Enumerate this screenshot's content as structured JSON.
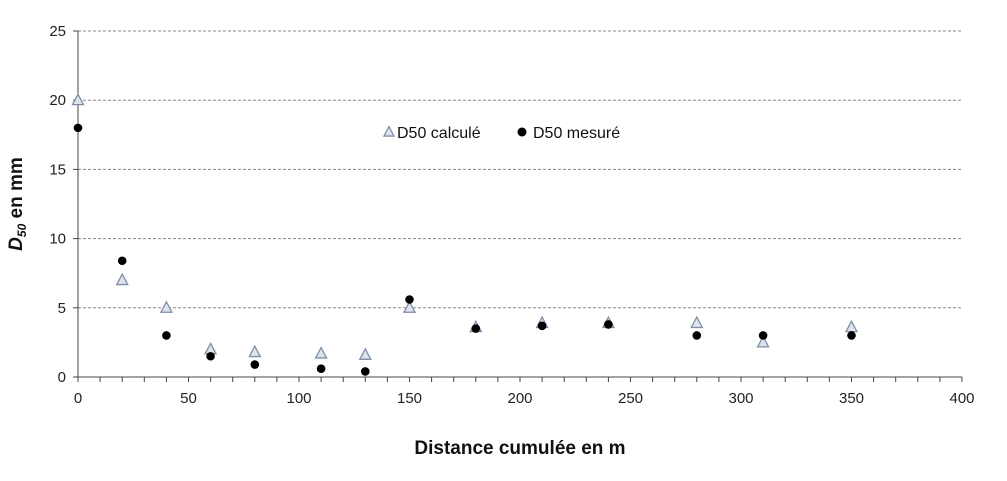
{
  "chart_data": {
    "type": "scatter",
    "xlabel": "Distance cumulée en m",
    "ylabel_main": "D",
    "ylabel_sub": "50",
    "ylabel_rest": " en mm",
    "xlim": [
      0,
      400
    ],
    "ylim": [
      0,
      25
    ],
    "xticks": [
      0,
      50,
      100,
      150,
      200,
      250,
      300,
      350,
      400
    ],
    "yticks": [
      0,
      5,
      10,
      15,
      20,
      25
    ],
    "grid": "horizontal-dashed",
    "legend_position": "upper-center",
    "series": [
      {
        "name": "D50 calculé",
        "marker": "triangle-open",
        "color": "#7f8fa8",
        "fill": "#dfe3ec",
        "points": [
          [
            0,
            20.0
          ],
          [
            20,
            7.0
          ],
          [
            40,
            5.0
          ],
          [
            60,
            2.0
          ],
          [
            80,
            1.8
          ],
          [
            110,
            1.7
          ],
          [
            130,
            1.6
          ],
          [
            150,
            5.0
          ],
          [
            180,
            3.6
          ],
          [
            210,
            3.9
          ],
          [
            240,
            3.9
          ],
          [
            280,
            3.9
          ],
          [
            310,
            2.5
          ],
          [
            350,
            3.6
          ]
        ]
      },
      {
        "name": "D50 mesuré",
        "marker": "circle-filled",
        "color": "#000000",
        "points": [
          [
            0,
            18.0
          ],
          [
            20,
            8.4
          ],
          [
            40,
            3.0
          ],
          [
            60,
            1.5
          ],
          [
            80,
            0.9
          ],
          [
            110,
            0.6
          ],
          [
            130,
            0.4
          ],
          [
            150,
            5.6
          ],
          [
            180,
            3.5
          ],
          [
            210,
            3.7
          ],
          [
            240,
            3.8
          ],
          [
            280,
            3.0
          ],
          [
            310,
            3.0
          ],
          [
            350,
            3.0
          ]
        ]
      }
    ]
  }
}
